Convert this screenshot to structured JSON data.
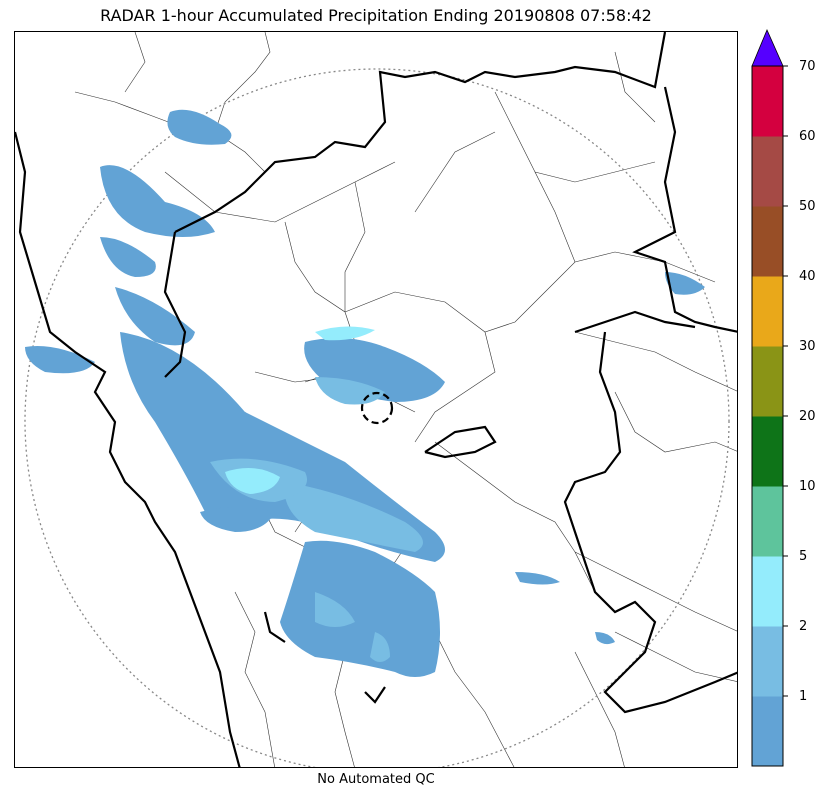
{
  "title": "RADAR 1-hour Accumulated Precipitation Ending 20190808 07:58:42",
  "caption": "No Automated QC",
  "colorbar": {
    "ticks": [
      "1",
      "2",
      "5",
      "10",
      "20",
      "30",
      "40",
      "50",
      "60",
      "70"
    ],
    "bands": [
      {
        "color": "#62a3d5"
      },
      {
        "color": "#78bde3"
      },
      {
        "color": "#94ecfc"
      },
      {
        "color": "#5ec49c"
      },
      {
        "color": "#0e7418"
      },
      {
        "color": "#8a9416"
      },
      {
        "color": "#e9a81a"
      },
      {
        "color": "#984e26"
      },
      {
        "color": "#a54a45"
      },
      {
        "color": "#d4003f"
      }
    ],
    "extend_color": "#5500ff"
  },
  "legend_colors": {
    "light_blue": "#62a3d5",
    "medium_blue": "#78bde3",
    "cyan": "#94ecfc"
  }
}
